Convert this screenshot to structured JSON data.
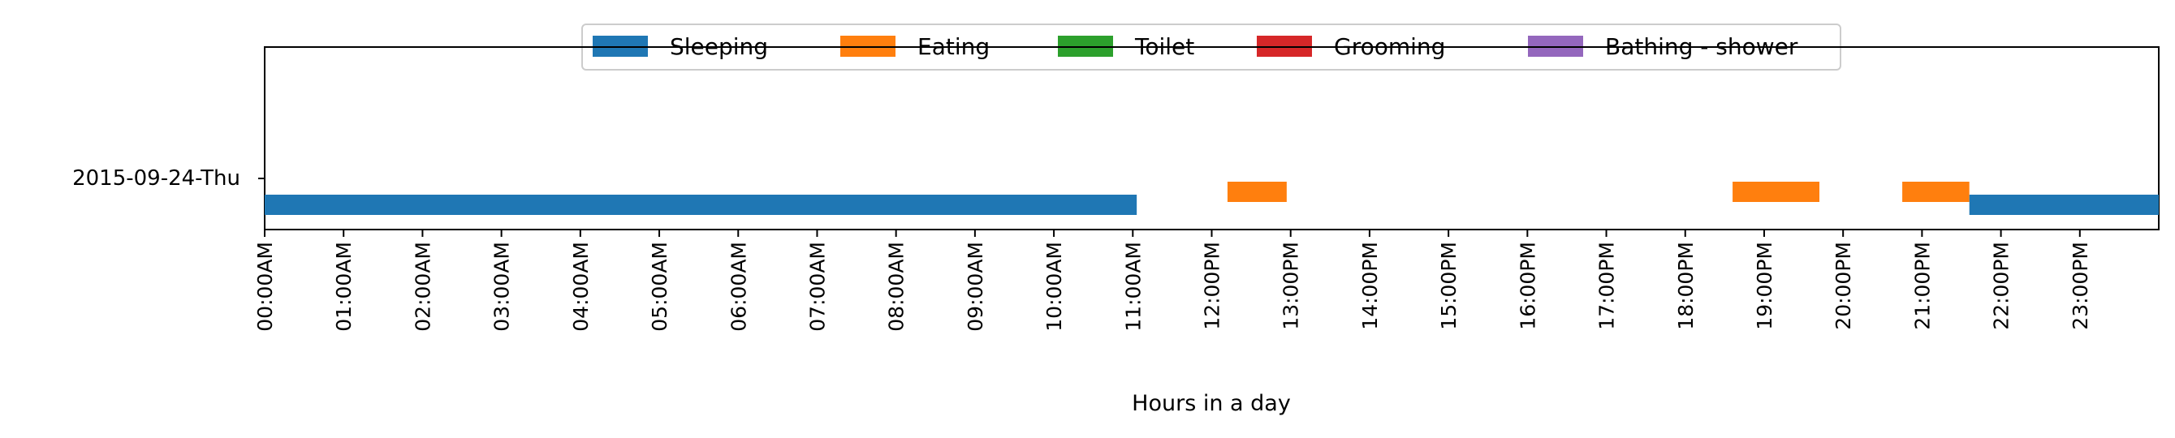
{
  "chart_data": {
    "type": "timeline",
    "xlabel": "Hours in a day",
    "row_label": "2015-09-24-Thu",
    "x_ticks": [
      "00:00AM",
      "01:00AM",
      "02:00AM",
      "03:00AM",
      "04:00AM",
      "05:00AM",
      "06:00AM",
      "07:00AM",
      "08:00AM",
      "09:00AM",
      "10:00AM",
      "11:00AM",
      "12:00PM",
      "13:00PM",
      "14:00PM",
      "15:00PM",
      "16:00PM",
      "17:00PM",
      "18:00PM",
      "19:00PM",
      "20:00PM",
      "21:00PM",
      "22:00PM",
      "23:00PM"
    ],
    "xlim": [
      0,
      24
    ],
    "legend": {
      "placement": "top-center",
      "items": [
        {
          "name": "Sleeping",
          "color": "#1f77b4"
        },
        {
          "name": "Eating",
          "color": "#ff7f0e"
        },
        {
          "name": "Toilet",
          "color": "#2ca02c"
        },
        {
          "name": "Grooming",
          "color": "#d62728"
        },
        {
          "name": "Bathing - shower",
          "color": "#9467bd"
        }
      ]
    },
    "segments": [
      {
        "activity": "Sleeping",
        "start": 0.0,
        "end": 11.05,
        "level": "low"
      },
      {
        "activity": "Eating",
        "start": 12.2,
        "end": 12.95,
        "level": "high"
      },
      {
        "activity": "Eating",
        "start": 18.6,
        "end": 19.7,
        "level": "high"
      },
      {
        "activity": "Eating",
        "start": 20.75,
        "end": 21.6,
        "level": "high"
      },
      {
        "activity": "Sleeping",
        "start": 21.6,
        "end": 24.0,
        "level": "low"
      }
    ]
  }
}
